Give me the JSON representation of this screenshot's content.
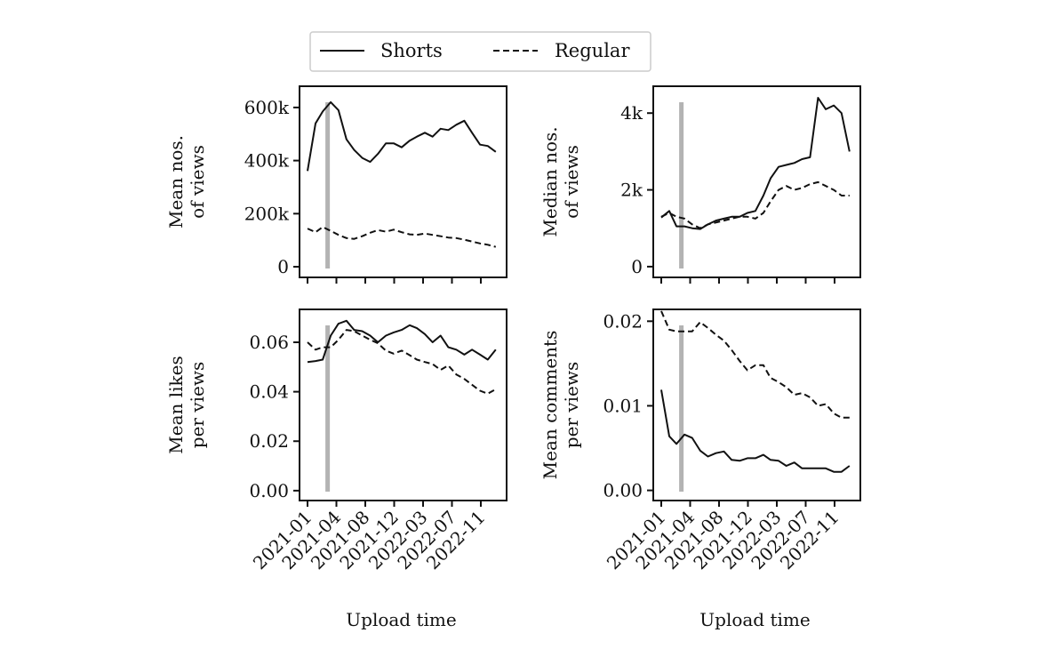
{
  "legend": {
    "items": [
      {
        "label": "Shorts",
        "style": "solid"
      },
      {
        "label": "Regular",
        "style": "dashed"
      }
    ],
    "placement": "top-center"
  },
  "colors": {
    "line": "#111111",
    "marker_line": "#b3b3b3"
  },
  "chart_data": [
    {
      "type": "line",
      "ylabel": [
        "Mean nos.",
        "of views"
      ],
      "xlabel": "",
      "x_ticks": [
        "2021-01-01",
        "2021-04-23",
        "2021-08-13",
        "2021-12-03",
        "2022-03-25",
        "2022-07-15",
        "2022-11-04"
      ],
      "x_tick_labels": [],
      "xlim": [
        "2020-12-01",
        "2023-02-12"
      ],
      "y_ticks": [
        0,
        200000,
        400000,
        600000
      ],
      "y_tick_labels": [
        "0",
        "200k",
        "400k",
        "600k"
      ],
      "ylim": [
        -40000,
        680000
      ],
      "vline": "2021-03-20",
      "x": [
        "2021-01",
        "2021-02",
        "2021-03",
        "2021-04",
        "2021-05",
        "2021-06",
        "2021-07",
        "2021-08",
        "2021-09",
        "2021-10",
        "2021-11",
        "2021-12",
        "2022-01",
        "2022-02",
        "2022-03",
        "2022-04",
        "2022-05",
        "2022-06",
        "2022-07",
        "2022-08",
        "2022-09",
        "2022-10",
        "2022-11",
        "2022-12",
        "2023-01"
      ],
      "series": [
        {
          "name": "Shorts",
          "values": [
            361000,
            540000,
            585000,
            620000,
            590000,
            480000,
            440000,
            410000,
            395000,
            425000,
            465000,
            465000,
            450000,
            475000,
            490000,
            505000,
            490000,
            520000,
            515000,
            535000,
            550000,
            505000,
            460000,
            455000,
            433000
          ]
        },
        {
          "name": "Regular",
          "values": [
            144000,
            130000,
            150000,
            135000,
            120000,
            108000,
            105000,
            115000,
            128000,
            138000,
            132000,
            140000,
            130000,
            122000,
            120000,
            125000,
            120000,
            115000,
            110000,
            108000,
            102000,
            95000,
            88000,
            83000,
            75000
          ]
        }
      ]
    },
    {
      "type": "line",
      "ylabel": [
        "Median nos.",
        "of views"
      ],
      "xlabel": "",
      "x_ticks": [
        "2021-01-01",
        "2021-04-23",
        "2021-08-13",
        "2021-12-03",
        "2022-03-25",
        "2022-07-15",
        "2022-11-04"
      ],
      "x_tick_labels": [],
      "xlim": [
        "2020-12-01",
        "2023-02-12"
      ],
      "y_ticks": [
        0,
        2000,
        4000
      ],
      "y_tick_labels": [
        "0",
        "2k",
        "4k"
      ],
      "ylim": [
        -280,
        4700
      ],
      "vline": "2021-03-20",
      "x": [
        "2021-01",
        "2021-02",
        "2021-03",
        "2021-04",
        "2021-05",
        "2021-06",
        "2021-07",
        "2021-08",
        "2021-09",
        "2021-10",
        "2021-11",
        "2021-12",
        "2022-01",
        "2022-02",
        "2022-03",
        "2022-04",
        "2022-05",
        "2022-06",
        "2022-07",
        "2022-08",
        "2022-09",
        "2022-10",
        "2022-11",
        "2022-12",
        "2023-01"
      ],
      "series": [
        {
          "name": "Shorts",
          "values": [
            1280,
            1450,
            1050,
            1050,
            1000,
            980,
            1100,
            1200,
            1250,
            1300,
            1300,
            1400,
            1450,
            1850,
            2300,
            2600,
            2650,
            2700,
            2800,
            2850,
            4400,
            4100,
            4200,
            4000,
            3000
          ]
        },
        {
          "name": "Regular",
          "values": [
            1300,
            1400,
            1300,
            1250,
            1100,
            1000,
            1100,
            1150,
            1200,
            1250,
            1300,
            1300,
            1250,
            1400,
            1700,
            2000,
            2100,
            2000,
            2050,
            2150,
            2200,
            2100,
            2000,
            1850,
            1850
          ]
        }
      ]
    },
    {
      "type": "line",
      "ylabel": [
        "Mean likes",
        "per views"
      ],
      "xlabel": "Upload time",
      "x_ticks": [
        "2021-01-01",
        "2021-04-23",
        "2021-08-13",
        "2021-12-03",
        "2022-03-25",
        "2022-07-15",
        "2022-11-04"
      ],
      "x_tick_labels": [
        "2021-01",
        "2021-04",
        "2021-08",
        "2021-12",
        "2022-03",
        "2022-07",
        "2022-11"
      ],
      "xlim": [
        "2020-12-01",
        "2023-02-12"
      ],
      "y_ticks": [
        0,
        0.02,
        0.04,
        0.06
      ],
      "y_tick_labels": [
        "0.00",
        "0.02",
        "0.04",
        "0.06"
      ],
      "ylim": [
        -0.004,
        0.0733
      ],
      "vline": "2021-03-20",
      "x": [
        "2021-01",
        "2021-02",
        "2021-03",
        "2021-04",
        "2021-05",
        "2021-06",
        "2021-07",
        "2021-08",
        "2021-09",
        "2021-10",
        "2021-11",
        "2021-12",
        "2022-01",
        "2022-02",
        "2022-03",
        "2022-04",
        "2022-05",
        "2022-06",
        "2022-07",
        "2022-08",
        "2022-09",
        "2022-10",
        "2022-11",
        "2022-12",
        "2023-01"
      ],
      "series": [
        {
          "name": "Shorts",
          "values": [
            0.052,
            0.0524,
            0.053,
            0.0627,
            0.0675,
            0.0687,
            0.065,
            0.0645,
            0.0627,
            0.06,
            0.0627,
            0.064,
            0.065,
            0.0669,
            0.0657,
            0.0633,
            0.06,
            0.0627,
            0.058,
            0.057,
            0.055,
            0.057,
            0.055,
            0.053,
            0.057
          ]
        },
        {
          "name": "Regular",
          "values": [
            0.06,
            0.057,
            0.058,
            0.058,
            0.061,
            0.065,
            0.0645,
            0.0627,
            0.061,
            0.0596,
            0.0566,
            0.0554,
            0.0566,
            0.0548,
            0.053,
            0.052,
            0.0512,
            0.0488,
            0.0506,
            0.047,
            0.0452,
            0.0428,
            0.0404,
            0.0392,
            0.041
          ]
        }
      ]
    },
    {
      "type": "line",
      "ylabel": [
        "Mean comments",
        "per views"
      ],
      "xlabel": "Upload time",
      "x_ticks": [
        "2021-01-01",
        "2021-04-23",
        "2021-08-13",
        "2021-12-03",
        "2022-03-25",
        "2022-07-15",
        "2022-11-04"
      ],
      "x_tick_labels": [
        "2021-01",
        "2021-04",
        "2021-08",
        "2021-12",
        "2022-03",
        "2022-07",
        "2022-11"
      ],
      "xlim": [
        "2020-12-01",
        "2023-02-12"
      ],
      "y_ticks": [
        0,
        0.01,
        0.02
      ],
      "y_tick_labels": [
        "0.00",
        "0.01",
        "0.02"
      ],
      "ylim": [
        -0.0012,
        0.0214
      ],
      "vline": "2021-03-20",
      "x": [
        "2021-01",
        "2021-02",
        "2021-03",
        "2021-04",
        "2021-05",
        "2021-06",
        "2021-07",
        "2021-08",
        "2021-09",
        "2021-10",
        "2021-11",
        "2021-12",
        "2022-01",
        "2022-02",
        "2022-03",
        "2022-04",
        "2022-05",
        "2022-06",
        "2022-07",
        "2022-08",
        "2022-09",
        "2022-10",
        "2022-11",
        "2022-12",
        "2023-01"
      ],
      "series": [
        {
          "name": "Shorts",
          "values": [
            0.0119,
            0.0064,
            0.0055,
            0.0066,
            0.0062,
            0.0047,
            0.004,
            0.0044,
            0.0046,
            0.0036,
            0.0035,
            0.0038,
            0.0038,
            0.0042,
            0.0036,
            0.0035,
            0.0029,
            0.0033,
            0.0026,
            0.0026,
            0.0026,
            0.0026,
            0.0022,
            0.0022,
            0.0029
          ]
        },
        {
          "name": "Regular",
          "values": [
            0.0212,
            0.019,
            0.0188,
            0.0188,
            0.0188,
            0.0199,
            0.0192,
            0.0184,
            0.0177,
            0.0166,
            0.0153,
            0.0142,
            0.0148,
            0.0148,
            0.0133,
            0.0128,
            0.0122,
            0.0113,
            0.0115,
            0.011,
            0.01,
            0.0102,
            0.0091,
            0.0086,
            0.0086
          ]
        }
      ]
    }
  ]
}
